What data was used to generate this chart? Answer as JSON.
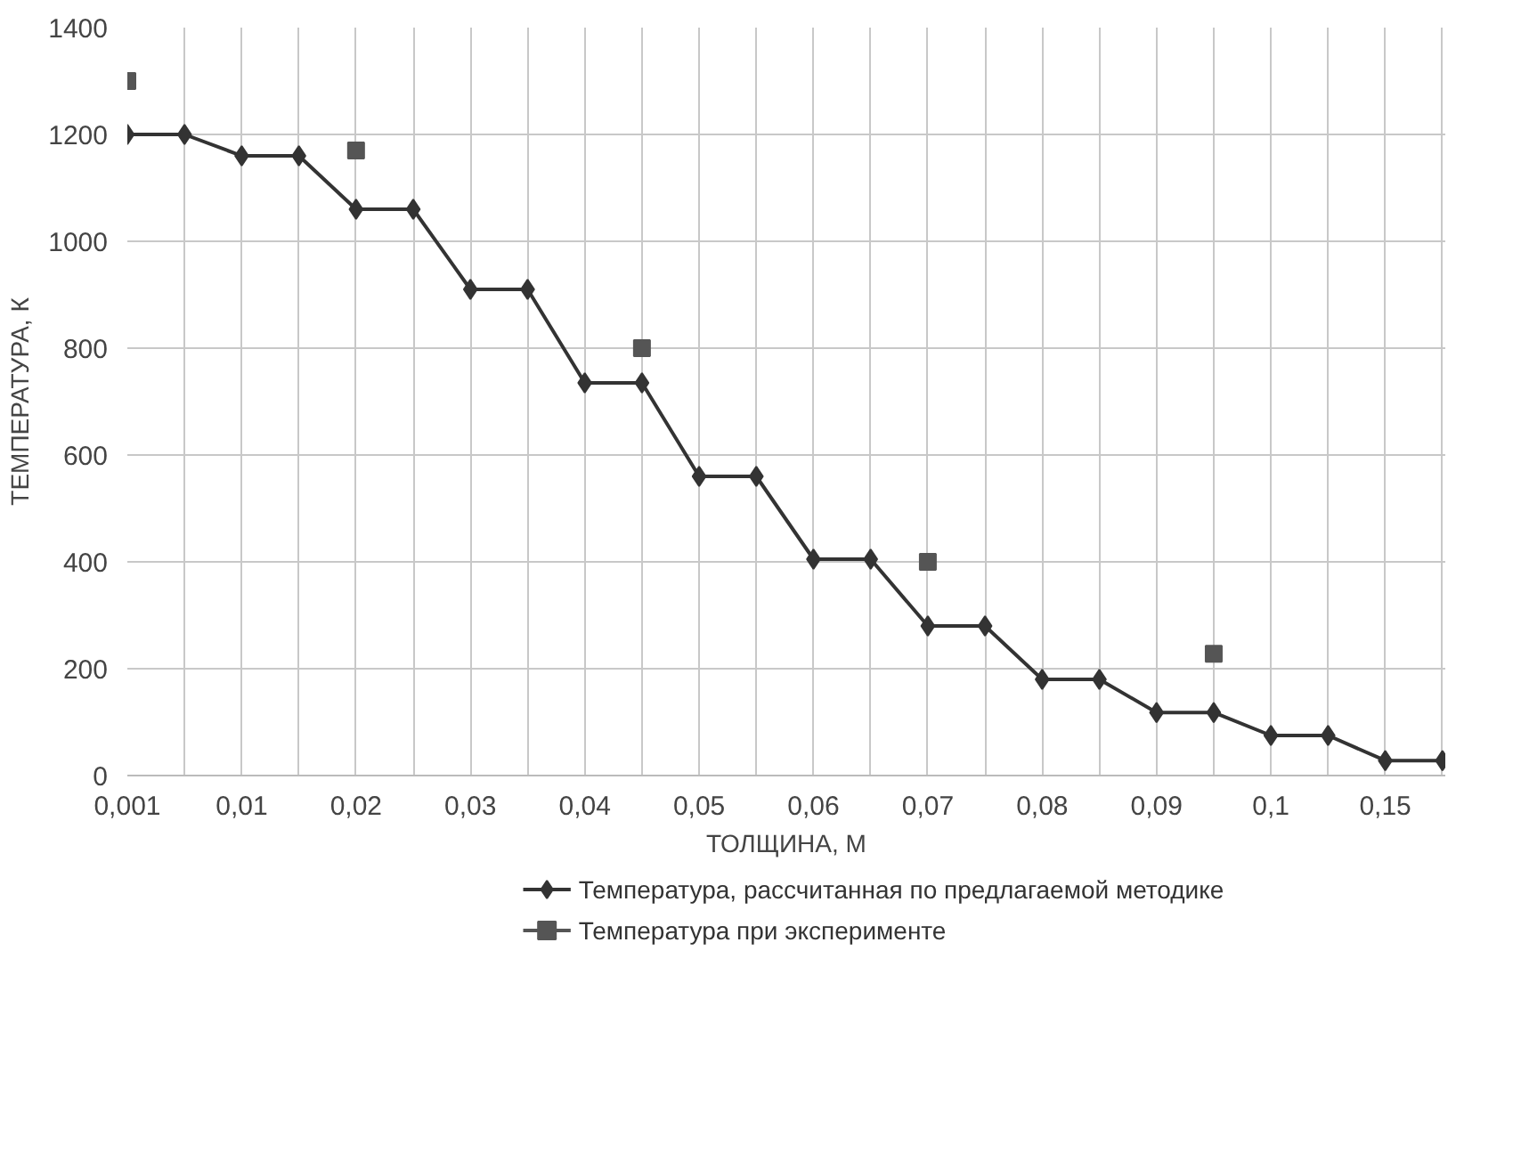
{
  "chart_data": {
    "type": "line",
    "xlabel": "ТОЛЩИНА, М",
    "ylabel": "ТЕМПЕРАТУРА, К",
    "categories": [
      "0,001",
      null,
      "0,01",
      null,
      "0,02",
      null,
      "0,03",
      null,
      "0,04",
      null,
      "0,05",
      null,
      "0,06",
      null,
      "0,07",
      null,
      "0,08",
      null,
      "0,09",
      null,
      "0,1",
      null,
      "0,15",
      null
    ],
    "series": [
      {
        "name": "Температура, рассчитанная по предлагаемой методике",
        "marker": "diamond",
        "color": "#333333",
        "values": [
          1200,
          1200,
          1160,
          1160,
          1060,
          1060,
          910,
          910,
          735,
          735,
          560,
          560,
          405,
          405,
          280,
          280,
          180,
          180,
          118,
          118,
          75,
          75,
          28,
          28
        ]
      },
      {
        "name": "Температура при эксперименте",
        "type": "scatter",
        "marker": "square",
        "color": "#555555",
        "values": [
          1300,
          null,
          null,
          null,
          1170,
          null,
          null,
          null,
          null,
          800,
          null,
          null,
          null,
          null,
          400,
          null,
          null,
          null,
          null,
          228,
          null,
          null,
          null,
          null
        ]
      }
    ],
    "ylim": [
      0,
      1400
    ],
    "yticks": [
      0,
      200,
      400,
      600,
      800,
      1000,
      1200,
      1400
    ],
    "grid": true,
    "legend": "bottom"
  }
}
